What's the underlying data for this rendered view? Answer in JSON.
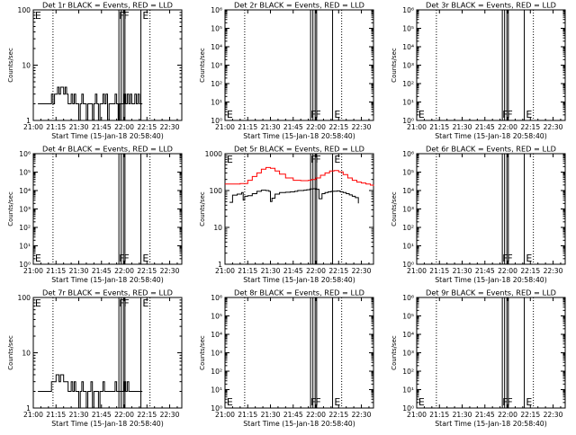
{
  "chart_data": [
    {
      "type": "line",
      "title": "Det 1r BLACK = Events, RED = LLD",
      "xlabel": "Start Time (15-Jan-18 20:58:40)",
      "ylabel": "Counts/sec",
      "x_ticks": [
        "21:00",
        "21:15",
        "21:30",
        "21:45",
        "22:00",
        "22:15",
        "22:30"
      ],
      "x_tick_minutes": [
        0,
        15,
        30,
        45,
        60,
        75,
        90
      ],
      "xlim_minutes": [
        0,
        98
      ],
      "y_scale": "log",
      "ylim": [
        1,
        100
      ],
      "y_ticks": [
        "1",
        "10",
        "100"
      ],
      "y_tick_values": [
        1,
        10,
        100
      ],
      "dotted_lines_minutes": [
        13,
        77
      ],
      "flag_lines_minutes": [
        56.5,
        58.0,
        59.5,
        60.5,
        71
      ],
      "annotations": [
        {
          "text": "E",
          "x_minute": 0.5,
          "pos": "top"
        },
        {
          "text": "F",
          "x_minute": 56.0,
          "pos": "top"
        },
        {
          "text": "F",
          "x_minute": 59.0,
          "pos": "top"
        },
        {
          "text": "E",
          "x_minute": 71.5,
          "pos": "top"
        }
      ],
      "series": [
        {
          "color": "#000000",
          "x": [
            3,
            5,
            7,
            9,
            11,
            12,
            13,
            14,
            15,
            16,
            17,
            18,
            19,
            20,
            21,
            22,
            23,
            24,
            25,
            26,
            27,
            28,
            29,
            30,
            31,
            32,
            33,
            34,
            35,
            36,
            37,
            38,
            39,
            40,
            41,
            42,
            43,
            44,
            45,
            46,
            47,
            48,
            49,
            50,
            51,
            52,
            53,
            54,
            55,
            56,
            57,
            58,
            59,
            60,
            61,
            62,
            63,
            64,
            65,
            66,
            67,
            68,
            69,
            70,
            71,
            72
          ],
          "y": [
            2,
            2,
            2,
            2,
            2,
            3,
            2,
            3,
            3,
            4,
            3,
            4,
            4,
            3,
            4,
            3,
            2,
            2,
            3,
            2,
            3,
            2,
            2,
            1,
            2,
            3,
            2,
            2,
            1,
            2,
            2,
            2,
            1,
            2,
            3,
            2,
            1,
            2,
            2,
            3,
            2,
            3,
            1,
            2,
            2,
            2,
            2,
            3,
            2,
            1,
            2,
            2,
            2,
            3,
            2,
            3,
            2,
            3,
            2,
            2,
            3,
            2,
            3,
            2,
            2,
            2
          ]
        }
      ]
    },
    {
      "type": "line",
      "title": "Det 2r BLACK = Events, RED = LLD",
      "xlabel": "Start Time (15-Jan-18 20:58:40)",
      "ylabel": "Counts/sec",
      "x_ticks": [
        "21:00",
        "21:15",
        "21:30",
        "21:45",
        "22:00",
        "22:15",
        "22:30"
      ],
      "x_tick_minutes": [
        0,
        15,
        30,
        45,
        60,
        75,
        90
      ],
      "xlim_minutes": [
        0,
        98
      ],
      "y_scale": "log",
      "ylim": [
        1,
        1000000
      ],
      "y_ticks": [
        "10⁰",
        "10¹",
        "10²",
        "10³",
        "10⁴",
        "10⁵",
        "10⁶"
      ],
      "y_tick_values": [
        1,
        10,
        100,
        1000,
        10000,
        100000,
        1000000
      ],
      "dotted_lines_minutes": [
        13,
        77
      ],
      "flag_lines_minutes": [
        56.5,
        58.0,
        59.5,
        60.5,
        71
      ],
      "annotations": [
        {
          "text": "E",
          "x_minute": 0.5,
          "pos": "bottom"
        },
        {
          "text": "F",
          "x_minute": 56.0,
          "pos": "bottom"
        },
        {
          "text": "F",
          "x_minute": 59.0,
          "pos": "bottom"
        },
        {
          "text": "E",
          "x_minute": 71.5,
          "pos": "bottom"
        }
      ],
      "series": []
    },
    {
      "type": "line",
      "title": "Det 3r BLACK = Events, RED = LLD",
      "xlabel": "Start Time (15-Jan-18 20:58:40)",
      "ylabel": "Counts/sec",
      "x_ticks": [
        "21:00",
        "21:15",
        "21:30",
        "21:45",
        "22:00",
        "22:15",
        "22:30"
      ],
      "x_tick_minutes": [
        0,
        15,
        30,
        45,
        60,
        75,
        90
      ],
      "xlim_minutes": [
        0,
        98
      ],
      "y_scale": "log",
      "ylim": [
        1,
        1000000
      ],
      "y_ticks": [
        "10⁰",
        "10¹",
        "10²",
        "10³",
        "10⁴",
        "10⁵",
        "10⁶"
      ],
      "y_tick_values": [
        1,
        10,
        100,
        1000,
        10000,
        100000,
        1000000
      ],
      "dotted_lines_minutes": [
        13,
        77
      ],
      "flag_lines_minutes": [
        56.5,
        58.0,
        59.5,
        60.5,
        71
      ],
      "annotations": [
        {
          "text": "E",
          "x_minute": 0.5,
          "pos": "bottom"
        },
        {
          "text": "F",
          "x_minute": 56.0,
          "pos": "bottom"
        },
        {
          "text": "F",
          "x_minute": 59.0,
          "pos": "bottom"
        },
        {
          "text": "E",
          "x_minute": 71.5,
          "pos": "bottom"
        }
      ],
      "series": []
    },
    {
      "type": "line",
      "title": "Det 4r BLACK = Events, RED = LLD",
      "xlabel": "Start Time (15-Jan-18 20:58:40)",
      "ylabel": "Counts/sec",
      "x_ticks": [
        "21:00",
        "21:15",
        "21:30",
        "21:45",
        "22:00",
        "22:15",
        "22:30"
      ],
      "x_tick_minutes": [
        0,
        15,
        30,
        45,
        60,
        75,
        90
      ],
      "xlim_minutes": [
        0,
        98
      ],
      "y_scale": "log",
      "ylim": [
        1,
        1000000
      ],
      "y_ticks": [
        "10⁰",
        "10¹",
        "10²",
        "10³",
        "10⁴",
        "10⁵",
        "10⁶"
      ],
      "y_tick_values": [
        1,
        10,
        100,
        1000,
        10000,
        100000,
        1000000
      ],
      "dotted_lines_minutes": [
        13,
        77
      ],
      "flag_lines_minutes": [
        56.5,
        58.0,
        59.5,
        60.5,
        71
      ],
      "annotations": [
        {
          "text": "E",
          "x_minute": 0.5,
          "pos": "bottom"
        },
        {
          "text": "F",
          "x_minute": 56.0,
          "pos": "bottom"
        },
        {
          "text": "F",
          "x_minute": 59.0,
          "pos": "bottom"
        },
        {
          "text": "E",
          "x_minute": 71.5,
          "pos": "bottom"
        }
      ],
      "series": []
    },
    {
      "type": "line",
      "title": "Det 5r BLACK = Events, RED = LLD",
      "xlabel": "Start Time (15-Jan-18 20:58:40)",
      "ylabel": "Counts/sec",
      "x_ticks": [
        "21:00",
        "21:15",
        "21:30",
        "21:45",
        "22:00",
        "22:15",
        "22:30"
      ],
      "x_tick_minutes": [
        0,
        15,
        30,
        45,
        60,
        75,
        90
      ],
      "xlim_minutes": [
        0,
        98
      ],
      "y_scale": "log",
      "ylim": [
        1,
        1000
      ],
      "y_ticks": [
        "1",
        "10",
        "100",
        "1000"
      ],
      "y_tick_values": [
        1,
        10,
        100,
        1000
      ],
      "dotted_lines_minutes": [
        13,
        77
      ],
      "flag_lines_minutes": [
        56.5,
        58.0,
        59.5,
        60.5,
        71
      ],
      "annotations": [
        {
          "text": "E",
          "x_minute": 0.5,
          "pos": "top"
        },
        {
          "text": "F",
          "x_minute": 56.0,
          "pos": "top"
        },
        {
          "text": "F",
          "x_minute": 59.0,
          "pos": "top"
        },
        {
          "text": "E",
          "x_minute": 71.5,
          "pos": "top"
        }
      ],
      "series": [
        {
          "color": "#ff0000",
          "x": [
            0,
            5,
            10,
            15,
            18,
            21,
            24,
            27,
            30,
            33,
            36,
            40,
            45,
            50,
            55,
            57,
            60,
            63,
            66,
            69,
            72,
            75,
            78,
            81,
            84,
            87,
            90,
            93,
            96,
            98
          ],
          "y": [
            150,
            150,
            155,
            190,
            240,
            300,
            380,
            420,
            400,
            340,
            280,
            220,
            190,
            185,
            190,
            200,
            220,
            260,
            300,
            340,
            350,
            320,
            270,
            220,
            190,
            170,
            160,
            150,
            140,
            135
          ]
        },
        {
          "color": "#000000",
          "x": [
            3,
            5,
            8,
            11,
            12,
            13,
            15,
            18,
            21,
            24,
            27,
            29,
            30,
            31,
            33,
            36,
            40,
            43,
            46,
            48,
            50,
            52,
            54,
            56,
            58,
            60,
            62,
            64,
            66,
            68,
            70,
            72,
            74,
            76,
            78,
            80,
            82,
            84,
            86,
            88
          ],
          "y": [
            48,
            75,
            80,
            88,
            55,
            70,
            72,
            82,
            95,
            102,
            100,
            95,
            50,
            62,
            80,
            88,
            90,
            92,
            95,
            100,
            100,
            102,
            105,
            110,
            112,
            108,
            60,
            82,
            88,
            92,
            95,
            96,
            98,
            92,
            88,
            82,
            76,
            70,
            64,
            45
          ]
        }
      ]
    },
    {
      "type": "line",
      "title": "Det 6r BLACK = Events, RED = LLD",
      "xlabel": "Start Time (15-Jan-18 20:58:40)",
      "ylabel": "Counts/sec",
      "x_ticks": [
        "21:00",
        "21:15",
        "21:30",
        "21:45",
        "22:00",
        "22:15",
        "22:30"
      ],
      "x_tick_minutes": [
        0,
        15,
        30,
        45,
        60,
        75,
        90
      ],
      "xlim_minutes": [
        0,
        98
      ],
      "y_scale": "log",
      "ylim": [
        1,
        1000000
      ],
      "y_ticks": [
        "10⁰",
        "10¹",
        "10²",
        "10³",
        "10⁴",
        "10⁵",
        "10⁶"
      ],
      "y_tick_values": [
        1,
        10,
        100,
        1000,
        10000,
        100000,
        1000000
      ],
      "dotted_lines_minutes": [
        13,
        77
      ],
      "flag_lines_minutes": [
        56.5,
        58.0,
        59.5,
        60.5,
        71
      ],
      "annotations": [
        {
          "text": "F",
          "x_minute": 56.0,
          "pos": "bottom"
        },
        {
          "text": "F",
          "x_minute": 59.0,
          "pos": "bottom"
        },
        {
          "text": "E",
          "x_minute": 71.5,
          "pos": "bottom"
        }
      ],
      "series": []
    },
    {
      "type": "line",
      "title": "Det 7r BLACK = Events, RED = LLD",
      "xlabel": "Start Time (15-Jan-18 20:58:40)",
      "ylabel": "Counts/sec",
      "x_ticks": [
        "21:00",
        "21:15",
        "21:30",
        "21:45",
        "22:00",
        "22:15",
        "22:30"
      ],
      "x_tick_minutes": [
        0,
        15,
        30,
        45,
        60,
        75,
        90
      ],
      "xlim_minutes": [
        0,
        98
      ],
      "y_scale": "log",
      "ylim": [
        1,
        100
      ],
      "y_ticks": [
        "1",
        "10",
        "100"
      ],
      "y_tick_values": [
        1,
        10,
        100
      ],
      "dotted_lines_minutes": [
        13,
        77
      ],
      "flag_lines_minutes": [
        56.5,
        58.0,
        59.5,
        60.5,
        71
      ],
      "annotations": [
        {
          "text": "E",
          "x_minute": 0.5,
          "pos": "top"
        },
        {
          "text": "F",
          "x_minute": 56.0,
          "pos": "top"
        },
        {
          "text": "F",
          "x_minute": 59.0,
          "pos": "top"
        },
        {
          "text": "E",
          "x_minute": 71.5,
          "pos": "top"
        }
      ],
      "series": [
        {
          "color": "#000000",
          "x": [
            3,
            5,
            7,
            9,
            11,
            12,
            13,
            14,
            15,
            16,
            17,
            18,
            19,
            20,
            21,
            22,
            23,
            24,
            25,
            26,
            27,
            28,
            29,
            30,
            31,
            32,
            33,
            34,
            35,
            36,
            37,
            38,
            39,
            40,
            41,
            42,
            43,
            44,
            45,
            46,
            47,
            48,
            49,
            50,
            51,
            52,
            53,
            54,
            55,
            56,
            57,
            58,
            59,
            60,
            61,
            62,
            63,
            64,
            65,
            66,
            67,
            68,
            69,
            70,
            71,
            72
          ],
          "y": [
            2,
            2,
            2,
            2,
            2,
            3,
            3,
            3,
            4,
            4,
            3,
            4,
            4,
            3,
            3,
            3,
            2,
            2,
            3,
            2,
            3,
            2,
            2,
            1,
            2,
            3,
            2,
            2,
            1,
            2,
            2,
            3,
            1,
            2,
            2,
            2,
            1,
            2,
            2,
            3,
            2,
            2,
            2,
            2,
            2,
            2,
            2,
            3,
            2,
            2,
            2,
            2,
            2,
            3,
            2,
            3,
            2,
            2,
            2,
            2,
            2,
            2,
            2,
            2,
            2,
            2
          ]
        }
      ]
    },
    {
      "type": "line",
      "title": "Det 8r BLACK = Events, RED = LLD",
      "xlabel": "Start Time (15-Jan-18 20:58:40)",
      "ylabel": "Counts/sec",
      "x_ticks": [
        "21:00",
        "21:15",
        "21:30",
        "21:45",
        "22:00",
        "22:15",
        "22:30"
      ],
      "x_tick_minutes": [
        0,
        15,
        30,
        45,
        60,
        75,
        90
      ],
      "xlim_minutes": [
        0,
        98
      ],
      "y_scale": "log",
      "ylim": [
        1,
        1000000
      ],
      "y_ticks": [
        "10⁰",
        "10¹",
        "10²",
        "10³",
        "10⁴",
        "10⁵",
        "10⁶"
      ],
      "y_tick_values": [
        1,
        10,
        100,
        1000,
        10000,
        100000,
        1000000
      ],
      "dotted_lines_minutes": [
        13,
        77
      ],
      "flag_lines_minutes": [
        56.5,
        58.0,
        59.5,
        60.5,
        71
      ],
      "annotations": [
        {
          "text": "E",
          "x_minute": 0.5,
          "pos": "bottom"
        },
        {
          "text": "F",
          "x_minute": 56.0,
          "pos": "bottom"
        },
        {
          "text": "F",
          "x_minute": 59.0,
          "pos": "bottom"
        },
        {
          "text": "E",
          "x_minute": 71.5,
          "pos": "bottom"
        }
      ],
      "series": []
    },
    {
      "type": "line",
      "title": "Det 9r BLACK = Events, RED = LLD",
      "xlabel": "Start Time (15-Jan-18 20:58:40)",
      "ylabel": "Counts/sec",
      "x_ticks": [
        "21:00",
        "21:15",
        "21:30",
        "21:45",
        "22:00",
        "22:15",
        "22:30"
      ],
      "x_tick_minutes": [
        0,
        15,
        30,
        45,
        60,
        75,
        90
      ],
      "xlim_minutes": [
        0,
        98
      ],
      "y_scale": "log",
      "ylim": [
        1,
        1000000
      ],
      "y_ticks": [
        "10⁰",
        "10¹",
        "10²",
        "10³",
        "10⁴",
        "10⁵",
        "10⁶"
      ],
      "y_tick_values": [
        1,
        10,
        100,
        1000,
        10000,
        100000,
        1000000
      ],
      "dotted_lines_minutes": [
        13,
        77
      ],
      "flag_lines_minutes": [
        56.5,
        58.0,
        59.5,
        60.5,
        71
      ],
      "annotations": [
        {
          "text": "E",
          "x_minute": 0.5,
          "pos": "bottom"
        },
        {
          "text": "F",
          "x_minute": 56.0,
          "pos": "bottom"
        },
        {
          "text": "F",
          "x_minute": 59.0,
          "pos": "bottom"
        },
        {
          "text": "E",
          "x_minute": 71.5,
          "pos": "bottom"
        }
      ],
      "series": []
    }
  ]
}
